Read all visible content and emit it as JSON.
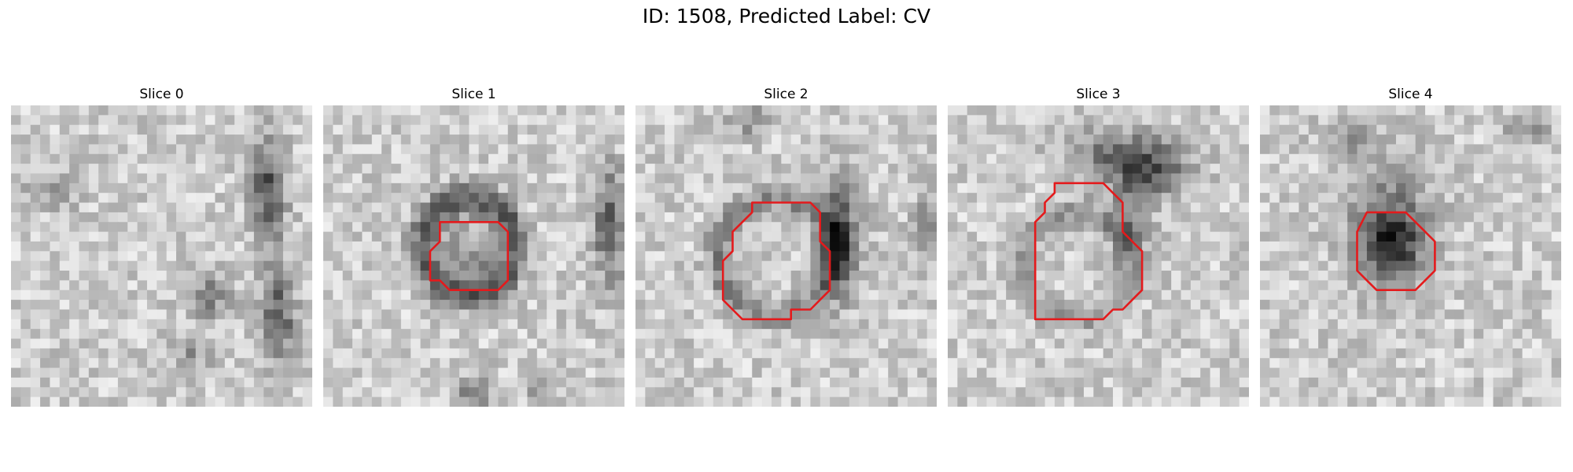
{
  "figure": {
    "title": "ID: 1508, Predicted Label: CV"
  },
  "slices": [
    {
      "title": "Slice 0",
      "has_contour": false
    },
    {
      "title": "Slice 1",
      "has_contour": true
    },
    {
      "title": "Slice 2",
      "has_contour": true
    },
    {
      "title": "Slice 3",
      "has_contour": true
    },
    {
      "title": "Slice 4",
      "has_contour": true
    }
  ],
  "colors": {
    "contour": "#e41a1c",
    "background": "#ffffff"
  },
  "image": {
    "colormap": "gray",
    "grid_size": 31
  }
}
